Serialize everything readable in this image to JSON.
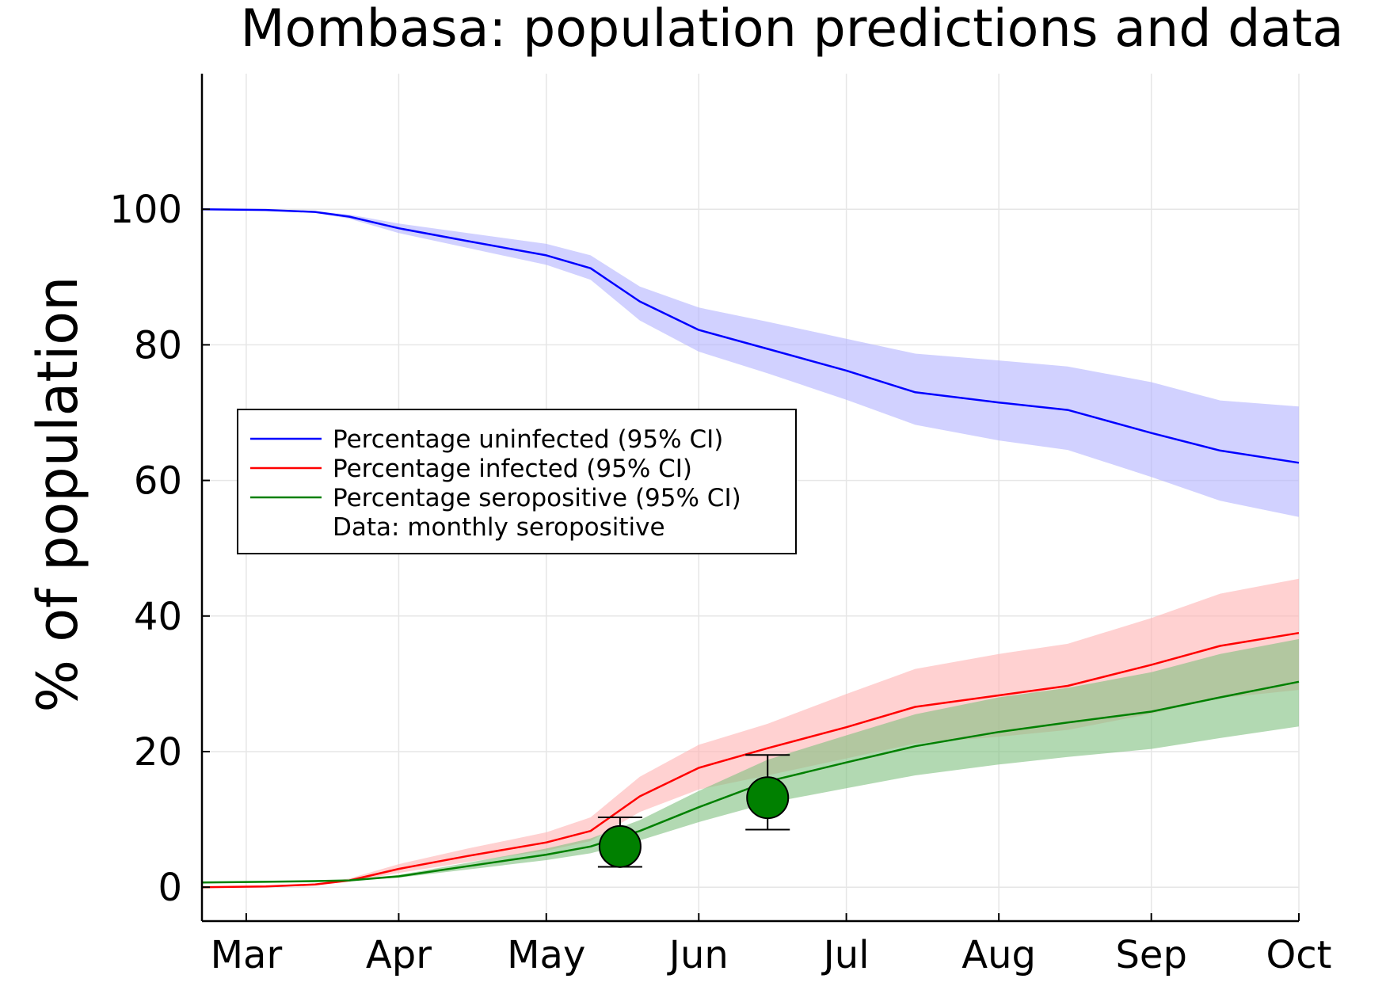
{
  "chart_data": {
    "type": "line",
    "title": "Mombasa: population predictions and data",
    "xlabel": "",
    "ylabel": "% of population",
    "x_ticks": [
      {
        "label": "Mar",
        "date": "2020-03-01"
      },
      {
        "label": "Apr",
        "date": "2020-04-01"
      },
      {
        "label": "May",
        "date": "2020-05-01"
      },
      {
        "label": "Jun",
        "date": "2020-06-01"
      },
      {
        "label": "Jul",
        "date": "2020-07-01"
      },
      {
        "label": "Aug",
        "date": "2020-08-01"
      },
      {
        "label": "Sep",
        "date": "2020-09-01"
      },
      {
        "label": "Oct",
        "date": "2020-10-01"
      }
    ],
    "xlim": [
      "2020-02-21",
      "2020-10-01"
    ],
    "y_ticks": [
      0,
      20,
      40,
      60,
      80,
      100
    ],
    "ylim": [
      -5,
      120
    ],
    "grid": true,
    "legend_position": "left-middle",
    "series": [
      {
        "name": "Percentage uninfected (95% CI)",
        "color": "#0000ff",
        "band_color": "#b2b2ff",
        "points": [
          {
            "x": "2020-02-21",
            "y": 100,
            "lo": 100,
            "hi": 100
          },
          {
            "x": "2020-03-05",
            "y": 99.9,
            "lo": 99.9,
            "hi": 99.9
          },
          {
            "x": "2020-03-15",
            "y": 99.6,
            "lo": 99.5,
            "hi": 99.7
          },
          {
            "x": "2020-03-22",
            "y": 98.9,
            "lo": 98.6,
            "hi": 99.2
          },
          {
            "x": "2020-04-01",
            "y": 97.2,
            "lo": 96.5,
            "hi": 97.9
          },
          {
            "x": "2020-04-15",
            "y": 95.3,
            "lo": 94.3,
            "hi": 96.5
          },
          {
            "x": "2020-05-01",
            "y": 93.2,
            "lo": 91.8,
            "hi": 94.9
          },
          {
            "x": "2020-05-10",
            "y": 91.3,
            "lo": 89.6,
            "hi": 93.2
          },
          {
            "x": "2020-05-20",
            "y": 86.4,
            "lo": 83.6,
            "hi": 88.6
          },
          {
            "x": "2020-06-01",
            "y": 82.2,
            "lo": 79.0,
            "hi": 85.5
          },
          {
            "x": "2020-06-15",
            "y": 79.4,
            "lo": 75.8,
            "hi": 83.4
          },
          {
            "x": "2020-07-01",
            "y": 76.2,
            "lo": 71.9,
            "hi": 80.9
          },
          {
            "x": "2020-07-15",
            "y": 73.0,
            "lo": 68.2,
            "hi": 78.7
          },
          {
            "x": "2020-08-01",
            "y": 71.5,
            "lo": 65.9,
            "hi": 77.7
          },
          {
            "x": "2020-08-15",
            "y": 70.4,
            "lo": 64.5,
            "hi": 76.8
          },
          {
            "x": "2020-09-01",
            "y": 67.0,
            "lo": 60.5,
            "hi": 74.5
          },
          {
            "x": "2020-09-15",
            "y": 64.4,
            "lo": 57.0,
            "hi": 71.8
          },
          {
            "x": "2020-10-01",
            "y": 62.6,
            "lo": 54.6,
            "hi": 70.9
          }
        ]
      },
      {
        "name": "Percentage infected (95% CI)",
        "color": "#ff0000",
        "band_color": "#ffb2b2",
        "points": [
          {
            "x": "2020-02-21",
            "y": 0,
            "lo": 0,
            "hi": 0
          },
          {
            "x": "2020-03-05",
            "y": 0.1,
            "lo": 0.1,
            "hi": 0.1
          },
          {
            "x": "2020-03-15",
            "y": 0.4,
            "lo": 0.3,
            "hi": 0.5
          },
          {
            "x": "2020-03-22",
            "y": 1.0,
            "lo": 0.8,
            "hi": 1.3
          },
          {
            "x": "2020-04-01",
            "y": 2.7,
            "lo": 2.1,
            "hi": 3.4
          },
          {
            "x": "2020-04-15",
            "y": 4.6,
            "lo": 3.7,
            "hi": 5.7
          },
          {
            "x": "2020-05-01",
            "y": 6.6,
            "lo": 5.4,
            "hi": 8.1
          },
          {
            "x": "2020-05-10",
            "y": 8.3,
            "lo": 6.8,
            "hi": 10.3
          },
          {
            "x": "2020-05-20",
            "y": 13.4,
            "lo": 11.1,
            "hi": 16.3
          },
          {
            "x": "2020-06-01",
            "y": 17.6,
            "lo": 14.4,
            "hi": 21.0
          },
          {
            "x": "2020-06-15",
            "y": 20.5,
            "lo": 16.5,
            "hi": 24.1
          },
          {
            "x": "2020-07-01",
            "y": 23.6,
            "lo": 19.0,
            "hi": 28.5
          },
          {
            "x": "2020-07-15",
            "y": 26.6,
            "lo": 21.2,
            "hi": 32.2
          },
          {
            "x": "2020-08-01",
            "y": 28.3,
            "lo": 22.2,
            "hi": 34.4
          },
          {
            "x": "2020-08-15",
            "y": 29.7,
            "lo": 23.2,
            "hi": 35.9
          },
          {
            "x": "2020-09-01",
            "y": 32.8,
            "lo": 25.6,
            "hi": 39.7
          },
          {
            "x": "2020-09-15",
            "y": 35.6,
            "lo": 27.9,
            "hi": 43.3
          },
          {
            "x": "2020-10-01",
            "y": 37.5,
            "lo": 29.1,
            "hi": 45.5
          }
        ]
      },
      {
        "name": "Percentage seropositive (95% CI)",
        "color": "#008000",
        "band_color": "#7fbf7f",
        "points": [
          {
            "x": "2020-02-21",
            "y": 0.7,
            "lo": 0.7,
            "hi": 0.7
          },
          {
            "x": "2020-03-05",
            "y": 0.8,
            "lo": 0.8,
            "hi": 0.8
          },
          {
            "x": "2020-03-15",
            "y": 0.9,
            "lo": 0.9,
            "hi": 0.9
          },
          {
            "x": "2020-03-22",
            "y": 1.0,
            "lo": 1.0,
            "hi": 1.1
          },
          {
            "x": "2020-04-01",
            "y": 1.6,
            "lo": 1.4,
            "hi": 1.8
          },
          {
            "x": "2020-04-15",
            "y": 3.1,
            "lo": 2.6,
            "hi": 3.6
          },
          {
            "x": "2020-05-01",
            "y": 4.8,
            "lo": 4.0,
            "hi": 5.7
          },
          {
            "x": "2020-05-10",
            "y": 6.0,
            "lo": 5.0,
            "hi": 7.2
          },
          {
            "x": "2020-05-20",
            "y": 8.3,
            "lo": 6.9,
            "hi": 9.9
          },
          {
            "x": "2020-06-01",
            "y": 11.8,
            "lo": 9.6,
            "hi": 14.2
          },
          {
            "x": "2020-06-15",
            "y": 15.6,
            "lo": 12.4,
            "hi": 18.8
          },
          {
            "x": "2020-07-01",
            "y": 18.4,
            "lo": 14.6,
            "hi": 22.4
          },
          {
            "x": "2020-07-15",
            "y": 20.8,
            "lo": 16.5,
            "hi": 25.5
          },
          {
            "x": "2020-08-01",
            "y": 22.9,
            "lo": 18.1,
            "hi": 28.0
          },
          {
            "x": "2020-08-15",
            "y": 24.3,
            "lo": 19.2,
            "hi": 29.4
          },
          {
            "x": "2020-09-01",
            "y": 25.9,
            "lo": 20.4,
            "hi": 31.7
          },
          {
            "x": "2020-09-15",
            "y": 28.0,
            "lo": 22.0,
            "hi": 34.4
          },
          {
            "x": "2020-10-01",
            "y": 30.3,
            "lo": 23.7,
            "hi": 36.6
          }
        ]
      }
    ],
    "data_points": {
      "name": "Data: monthly seropositive",
      "color": "#008000",
      "points": [
        {
          "x": "2020-05-16",
          "y": 6.0,
          "err_lo": 3.0,
          "err_hi": 10.3
        },
        {
          "x": "2020-06-15",
          "y": 13.2,
          "err_lo": 8.5,
          "err_hi": 19.5
        }
      ]
    }
  }
}
